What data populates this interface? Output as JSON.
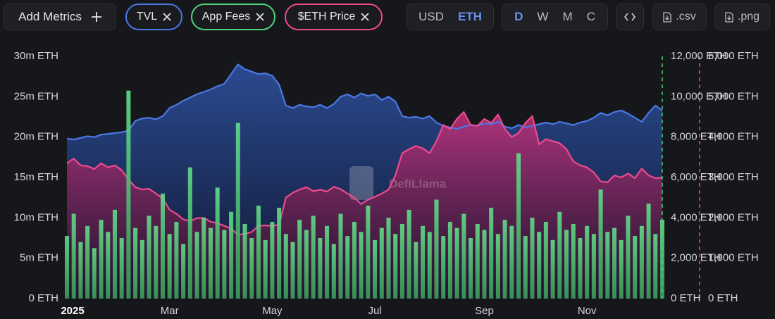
{
  "toolbar": {
    "add_metrics": "Add Metrics",
    "currency": [
      "USD",
      "ETH"
    ],
    "currency_active": 1,
    "period": [
      "D",
      "W",
      "M",
      "C"
    ],
    "period_active": 0,
    "exports": [
      ".csv",
      ".png"
    ]
  },
  "watermark": "DefiLlama",
  "chart_data": {
    "type": "combo",
    "categories": [
      "2025",
      null,
      null,
      null,
      null,
      null,
      null,
      null,
      null,
      null,
      null,
      null,
      null,
      null,
      null,
      "Mar",
      null,
      null,
      null,
      null,
      null,
      null,
      null,
      null,
      null,
      null,
      null,
      null,
      null,
      null,
      "May",
      null,
      null,
      null,
      null,
      null,
      null,
      null,
      null,
      null,
      null,
      null,
      null,
      null,
      null,
      "Jul",
      null,
      null,
      null,
      null,
      null,
      null,
      null,
      null,
      null,
      null,
      null,
      null,
      null,
      null,
      null,
      "Sep",
      null,
      null,
      null,
      null,
      null,
      null,
      null,
      null,
      null,
      null,
      null,
      null,
      null,
      null,
      "Nov",
      null,
      null,
      null,
      null,
      null,
      null,
      null,
      null,
      null,
      null,
      null
    ],
    "ylim": [
      0,
      30
    ],
    "yticks": [
      {
        "value": 0,
        "label": "0 ETH"
      },
      {
        "value": 5,
        "label": "5m ETH"
      },
      {
        "value": 10,
        "label": "10m ETH"
      },
      {
        "value": 15,
        "label": "15m ETH"
      },
      {
        "value": 20,
        "label": "20m ETH"
      },
      {
        "value": 25,
        "label": "25m ETH"
      },
      {
        "value": 30,
        "label": "30m ETH"
      }
    ],
    "y2lim": [
      0,
      12000
    ],
    "y2ticks": [
      {
        "value": 0,
        "label": "0 ETH"
      },
      {
        "value": 2000,
        "label": "2,000 ETH"
      },
      {
        "value": 4000,
        "label": "4,000 ETH"
      },
      {
        "value": 6000,
        "label": "6,000 ETH"
      },
      {
        "value": 8000,
        "label": "8,000 ETH"
      },
      {
        "value": 10000,
        "label": "10,000 ETH"
      },
      {
        "value": 12000,
        "label": "12,000 ETH"
      }
    ],
    "y3lim": [
      0,
      6000
    ],
    "y3ticks": [
      {
        "value": 0,
        "label": "0 ETH"
      },
      {
        "value": 1000,
        "label": "1,000 ETH"
      },
      {
        "value": 2000,
        "label": "2,000 ETH"
      },
      {
        "value": 3000,
        "label": "3,000 ETH"
      },
      {
        "value": 4000,
        "label": "4,000 ETH"
      },
      {
        "value": 5000,
        "label": "5,000 ETH"
      },
      {
        "value": 6000,
        "label": "6,000 ETH"
      }
    ],
    "series": [
      {
        "name": "TVL",
        "type": "area",
        "axis": "y",
        "color": "#4a78e6",
        "values": [
          19.8,
          19.7,
          19.9,
          20.1,
          20.0,
          20.3,
          20.4,
          20.5,
          20.6,
          20.8,
          22.0,
          22.3,
          22.4,
          22.2,
          22.6,
          23.6,
          24.0,
          24.5,
          24.9,
          25.3,
          25.6,
          25.9,
          26.3,
          26.6,
          27.8,
          29.0,
          28.4,
          28.1,
          27.8,
          27.9,
          27.6,
          26.5,
          23.9,
          23.6,
          24.0,
          23.8,
          23.7,
          24.0,
          23.6,
          24.1,
          25.0,
          25.3,
          24.9,
          25.4,
          25.1,
          25.3,
          24.6,
          25.0,
          24.4,
          22.6,
          22.4,
          22.5,
          22.3,
          22.6,
          21.8,
          21.4,
          21.2,
          21.0,
          21.3,
          21.5,
          21.4,
          21.7,
          21.6,
          21.9,
          21.3,
          21.1,
          21.5,
          21.2,
          21.4,
          21.6,
          21.8,
          21.6,
          21.9,
          21.7,
          21.5,
          21.8,
          22.0,
          22.4,
          23.0,
          22.7,
          23.1,
          23.3,
          22.9,
          22.4,
          21.9,
          23.0,
          23.9,
          23.3
        ]
      },
      {
        "name": "App Fees",
        "type": "bar",
        "axis": "y2",
        "color": "#4fd27a",
        "values": [
          3100,
          4200,
          2800,
          3600,
          2500,
          3900,
          3300,
          4400,
          3000,
          10300,
          3500,
          2900,
          4100,
          3600,
          5200,
          3200,
          3800,
          2700,
          6500,
          3300,
          4000,
          3500,
          5500,
          3400,
          4300,
          8700,
          3700,
          3000,
          4600,
          2900,
          3800,
          4500,
          3200,
          2800,
          3900,
          3400,
          4100,
          3000,
          3600,
          2700,
          4200,
          3100,
          3800,
          3300,
          4600,
          2900,
          3500,
          4000,
          3200,
          3700,
          4400,
          2800,
          3600,
          3300,
          4900,
          3100,
          3800,
          3500,
          4200,
          3000,
          3700,
          3400,
          4500,
          3200,
          3900,
          3600,
          7200,
          3100,
          4000,
          3300,
          3800,
          2900,
          4300,
          3400,
          3700,
          3000,
          3600,
          3200,
          5400,
          3300,
          3500,
          2900,
          4100,
          3100,
          3600,
          4700,
          3200,
          3900
        ]
      },
      {
        "name": "$ETH Price",
        "type": "area",
        "axis": "y3",
        "color": "#ee4a8e",
        "values": [
          3350,
          3470,
          3300,
          3280,
          3210,
          3350,
          3250,
          3300,
          3180,
          2950,
          2760,
          2700,
          2720,
          2600,
          2480,
          2200,
          2100,
          1960,
          1920,
          1990,
          2000,
          1900,
          1870,
          1800,
          1730,
          1580,
          1600,
          1650,
          1800,
          1810,
          1800,
          1830,
          2500,
          2620,
          2700,
          2760,
          2660,
          2700,
          2650,
          2770,
          2710,
          2600,
          2500,
          2340,
          2450,
          2520,
          2600,
          2700,
          3050,
          3600,
          3700,
          3780,
          3720,
          3600,
          3900,
          4300,
          4200,
          4450,
          4620,
          4300,
          4280,
          4450,
          4350,
          4560,
          4200,
          4000,
          4100,
          4350,
          4520,
          3820,
          3950,
          3900,
          3850,
          3700,
          3400,
          3300,
          3250,
          3120,
          2900,
          2880,
          3050,
          3000,
          3100,
          2980,
          3220,
          3050,
          2980,
          3000
        ]
      }
    ]
  }
}
